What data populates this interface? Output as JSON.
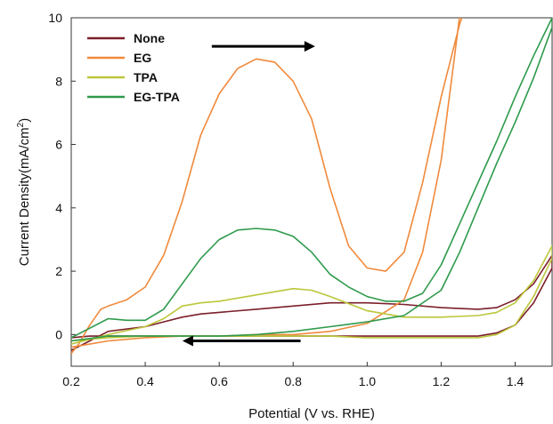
{
  "chart_data": {
    "type": "line",
    "xlabel": "Potential (V vs. RHE)",
    "ylabel": "Current Density(mA/cm",
    "ylabel_sup": "2",
    "ylabel_close": ")",
    "xlim": [
      0.2,
      1.5
    ],
    "ylim": [
      -1,
      10
    ],
    "xticks": [
      "0.2",
      "0.4",
      "0.6",
      "0.8",
      "1.0",
      "1.2",
      "1.4"
    ],
    "yticks": [
      "0",
      "2",
      "4",
      "6",
      "8",
      "10"
    ],
    "grid": false,
    "legend_position": "top-left",
    "annotations": [
      {
        "type": "arrow",
        "direction": "right",
        "x_from": 0.58,
        "x_to": 0.84,
        "y": 9.1
      },
      {
        "type": "arrow",
        "direction": "left",
        "x_from": 0.82,
        "x_to": 0.52,
        "y": -0.2
      }
    ],
    "series": [
      {
        "name": "None",
        "color": "#7b1f2a",
        "x": [
          0.2,
          0.25,
          0.3,
          0.4,
          0.45,
          0.5,
          0.55,
          0.6,
          0.7,
          0.8,
          0.9,
          1.0,
          1.1,
          1.2,
          1.3,
          1.35,
          1.4,
          1.45,
          1.5,
          1.5,
          1.45,
          1.4,
          1.35,
          1.3,
          1.2,
          1.1,
          1.0,
          0.9,
          0.8,
          0.7,
          0.6,
          0.5,
          0.4,
          0.3,
          0.25,
          0.2
        ],
        "y": [
          -0.5,
          -0.2,
          0.1,
          0.25,
          0.4,
          0.55,
          0.65,
          0.7,
          0.8,
          0.9,
          1.0,
          1.0,
          0.95,
          0.85,
          0.8,
          0.85,
          1.1,
          1.6,
          2.5,
          2.1,
          1.0,
          0.3,
          0.05,
          -0.05,
          -0.05,
          -0.05,
          -0.05,
          -0.05,
          -0.05,
          -0.05,
          -0.05,
          -0.05,
          -0.05,
          -0.05,
          -0.05,
          -0.1
        ]
      },
      {
        "name": "EG",
        "color": "#f08a3c",
        "x": [
          0.2,
          0.22,
          0.25,
          0.28,
          0.3,
          0.35,
          0.4,
          0.45,
          0.5,
          0.55,
          0.6,
          0.65,
          0.7,
          0.75,
          0.8,
          0.85,
          0.9,
          0.95,
          1.0,
          1.05,
          1.1,
          1.15,
          1.2,
          1.25,
          1.27,
          1.255,
          1.23,
          1.2,
          1.15,
          1.1,
          1.0,
          0.9,
          0.8,
          0.7,
          0.6,
          0.5,
          0.4,
          0.3,
          0.25,
          0.2
        ],
        "y": [
          -0.6,
          -0.3,
          0.3,
          0.8,
          0.9,
          1.1,
          1.5,
          2.5,
          4.2,
          6.3,
          7.6,
          8.4,
          8.7,
          8.6,
          8.0,
          6.8,
          4.6,
          2.8,
          2.1,
          2.0,
          2.6,
          4.8,
          7.5,
          9.8,
          10.5,
          10.5,
          8.2,
          5.5,
          2.6,
          1.1,
          0.35,
          0.1,
          0.0,
          0.0,
          -0.05,
          -0.05,
          -0.1,
          -0.2,
          -0.3,
          -0.4
        ]
      },
      {
        "name": "TPA",
        "color": "#bcc63a",
        "x": [
          0.2,
          0.3,
          0.4,
          0.45,
          0.5,
          0.55,
          0.6,
          0.7,
          0.8,
          0.85,
          0.9,
          1.0,
          1.1,
          1.2,
          1.3,
          1.35,
          1.4,
          1.45,
          1.5,
          1.5,
          1.45,
          1.4,
          1.35,
          1.3,
          1.2,
          1.1,
          1.0,
          0.9,
          0.8,
          0.7,
          0.6,
          0.5,
          0.4,
          0.3,
          0.2
        ],
        "y": [
          -0.3,
          0.0,
          0.25,
          0.5,
          0.9,
          1.0,
          1.05,
          1.25,
          1.45,
          1.4,
          1.2,
          0.75,
          0.55,
          0.55,
          0.6,
          0.7,
          1.0,
          1.7,
          2.8,
          2.4,
          1.2,
          0.3,
          0.0,
          -0.1,
          -0.1,
          -0.1,
          -0.1,
          -0.05,
          -0.05,
          -0.05,
          -0.05,
          -0.05,
          -0.05,
          -0.1,
          -0.2
        ]
      },
      {
        "name": "EG-TPA",
        "color": "#2e9a4b",
        "x": [
          0.2,
          0.25,
          0.3,
          0.35,
          0.4,
          0.45,
          0.5,
          0.55,
          0.6,
          0.65,
          0.7,
          0.75,
          0.8,
          0.85,
          0.9,
          0.95,
          1.0,
          1.05,
          1.1,
          1.15,
          1.2,
          1.25,
          1.3,
          1.35,
          1.4,
          1.45,
          1.5,
          1.5,
          1.45,
          1.4,
          1.35,
          1.3,
          1.25,
          1.2,
          1.1,
          1.0,
          0.9,
          0.8,
          0.7,
          0.6,
          0.5,
          0.4,
          0.3,
          0.2
        ],
        "y": [
          -0.1,
          0.2,
          0.5,
          0.45,
          0.45,
          0.8,
          1.6,
          2.4,
          3.0,
          3.3,
          3.35,
          3.3,
          3.1,
          2.6,
          1.9,
          1.5,
          1.2,
          1.05,
          1.05,
          1.3,
          2.2,
          3.5,
          4.8,
          6.1,
          7.5,
          8.8,
          10.0,
          9.7,
          8.1,
          6.7,
          5.4,
          4.0,
          2.6,
          1.4,
          0.6,
          0.4,
          0.25,
          0.1,
          0.0,
          -0.05,
          -0.05,
          -0.05,
          -0.05,
          -0.2
        ]
      }
    ]
  }
}
